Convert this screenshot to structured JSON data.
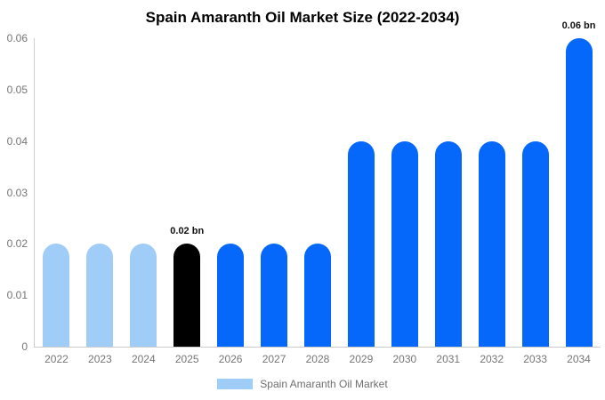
{
  "title": "Spain Amaranth Oil Market Size (2022-2034)",
  "legend": {
    "label": "Spain Amaranth Oil Market"
  },
  "colors": {
    "past": "#a0ccf8",
    "current": "#000000",
    "forecast": "#0568fa",
    "axis_line": "#cccccc",
    "tick_text": "#757575",
    "title_text": "#000000",
    "value_label_text": "#111111"
  },
  "chart_data": {
    "type": "bar",
    "title": "Spain Amaranth Oil Market Size (2022-2034)",
    "xlabel": "",
    "ylabel": "",
    "categories": [
      "2022",
      "2023",
      "2024",
      "2025",
      "2026",
      "2027",
      "2028",
      "2029",
      "2030",
      "2031",
      "2032",
      "2033",
      "2034"
    ],
    "values": [
      0.02,
      0.02,
      0.02,
      0.02,
      0.02,
      0.02,
      0.02,
      0.04,
      0.04,
      0.04,
      0.04,
      0.04,
      0.06
    ],
    "unit": "bn",
    "bar_roles": [
      "past",
      "past",
      "past",
      "current",
      "forecast",
      "forecast",
      "forecast",
      "forecast",
      "forecast",
      "forecast",
      "forecast",
      "forecast",
      "forecast"
    ],
    "annotations": [
      {
        "category": "2025",
        "text": "0.02 bn"
      },
      {
        "category": "2034",
        "text": "0.06 bn"
      }
    ],
    "ylim": [
      0,
      0.06
    ],
    "yticks": [
      "0",
      "0.01",
      "0.02",
      "0.03",
      "0.04",
      "0.05",
      "0.06"
    ],
    "grid": false,
    "legend_position": "bottom",
    "legend_entries": [
      "Spain Amaranth Oil Market"
    ]
  }
}
